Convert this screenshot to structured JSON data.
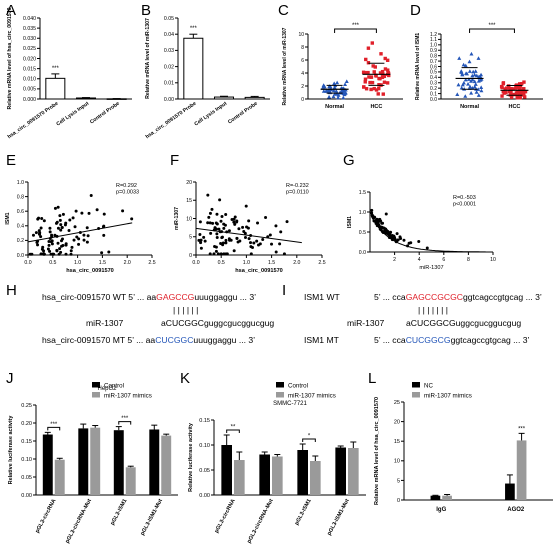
{
  "panel_letters": {
    "A": "A",
    "B": "B",
    "C": "C",
    "D": "D",
    "E": "E",
    "F": "F",
    "G": "G",
    "H": "H",
    "I": "I",
    "J": "J",
    "K": "K",
    "L": "L"
  },
  "colors": {
    "black": "#000000",
    "gray": "#9a9a9a",
    "red": "#e0202a",
    "blue": "#2456b8",
    "trend": "#000000"
  },
  "chart_data": [
    {
      "id": "A",
      "type": "bar",
      "ylabel": "Relative mRNA level of hsa_circ_0091570",
      "categories": [
        "hsa_circ_0091570 Probe",
        "Cell Lysis Input",
        "Control Probe"
      ],
      "values": [
        0.0102,
        0.0005,
        0.0001
      ],
      "errors": [
        0.0022,
        0.0002,
        0.0001
      ],
      "ylim": [
        0,
        0.04
      ],
      "yticks": [
        "0.000",
        "0.005",
        "0.010",
        "0.015",
        "0.020",
        "0.025",
        "0.030",
        "0.035",
        "0.040"
      ],
      "significance": "***"
    },
    {
      "id": "B",
      "type": "bar",
      "ylabel": "Relative mRNA level of miR-1307",
      "categories": [
        "hsa_circ_0091570 Probe",
        "Cell Lysis Input",
        "Control Probe"
      ],
      "values": [
        0.0375,
        0.0012,
        0.001
      ],
      "errors": [
        0.0025,
        0.0005,
        0.0006
      ],
      "ylim": [
        0,
        0.05
      ],
      "yticks": [
        "0.00",
        "0.01",
        "0.02",
        "0.03",
        "0.04",
        "0.05"
      ],
      "significance": "***"
    },
    {
      "id": "C",
      "type": "scatter",
      "ylabel": "Relative mRNA level of miR-1307",
      "categories": [
        "Normal",
        "HCC"
      ],
      "ylim": [
        0,
        10
      ],
      "yticks": [
        "0",
        "2",
        "4",
        "6",
        "8",
        "10"
      ],
      "group_means": [
        1.5,
        3.8
      ],
      "group_sd": [
        0.6,
        1.7
      ],
      "n_per_group": [
        50,
        50
      ],
      "marker_colors": [
        "#2456b8",
        "#e0202a"
      ],
      "significance": "***"
    },
    {
      "id": "D",
      "type": "scatter",
      "ylabel": "Relative mRNA level of ISM1",
      "categories": [
        "Normal",
        "HCC"
      ],
      "ylim": [
        0,
        1.2
      ],
      "yticks": [
        "0.0",
        "0.1",
        "0.2",
        "0.3",
        "0.4",
        "0.5",
        "0.6",
        "0.7",
        "0.8",
        "0.9",
        "1.0",
        "1.1",
        "1.2"
      ],
      "group_means": [
        0.38,
        0.16
      ],
      "group_sd": [
        0.2,
        0.09
      ],
      "n_per_group": [
        50,
        50
      ],
      "marker_colors": [
        "#2456b8",
        "#e0202a"
      ],
      "significance": "***"
    },
    {
      "id": "E",
      "type": "scatter",
      "xlabel": "hsa_circ_0091570",
      "ylabel": "ISM1",
      "xlim": [
        0,
        2.5
      ],
      "ylim": [
        0,
        1.0
      ],
      "xticks": [
        "0.0",
        "0.5",
        "1.0",
        "1.5",
        "2.0",
        "2.5"
      ],
      "yticks": [
        "0.0",
        "0.2",
        "0.4",
        "0.6",
        "0.8",
        "1.0"
      ],
      "stats": [
        "R=0.292",
        "p=0.0033"
      ],
      "trend": [
        [
          0,
          0.18
        ],
        [
          2.1,
          0.44
        ]
      ]
    },
    {
      "id": "F",
      "type": "scatter",
      "xlabel": "hsa_circ_0091570",
      "ylabel": "miR-1307",
      "xlim": [
        0,
        2.5
      ],
      "ylim": [
        0,
        20
      ],
      "xticks": [
        "0.0",
        "0.5",
        "1.0",
        "1.5",
        "2.0",
        "2.5"
      ],
      "yticks": [
        "0",
        "5",
        "10",
        "15",
        "20"
      ],
      "stats": [
        "R=-0.232",
        "p=0.0110"
      ],
      "trend": [
        [
          0,
          7.3
        ],
        [
          2.1,
          3.4
        ]
      ]
    },
    {
      "id": "G",
      "type": "scatter",
      "xlabel": "miR-1307",
      "ylabel": "ISM1",
      "xlim": [
        0,
        10
      ],
      "ylim": [
        0,
        1.5
      ],
      "xticks": [
        "2",
        "4",
        "6",
        "8",
        "10"
      ],
      "yticks": [
        "0.0",
        "0.5",
        "1.0",
        "1.5"
      ],
      "stats": [
        "R=0.-503",
        "p<0.0001"
      ],
      "trend": "decay"
    },
    {
      "id": "J",
      "type": "bar",
      "title": "HepG2",
      "ylabel": "Relative luciferase activity",
      "categories": [
        "pGL3-circRNA",
        "pGL3-circRNA-Mut",
        "pGL3-ISM1",
        "pGL3-ISM1-Mut"
      ],
      "series": [
        {
          "name": "Control",
          "values": [
            0.168,
            0.185,
            0.18,
            0.182
          ],
          "errors": [
            0.006,
            0.012,
            0.01,
            0.012
          ]
        },
        {
          "name": "miR-1307 mimics",
          "values": [
            0.098,
            0.187,
            0.077,
            0.165
          ],
          "errors": [
            0.004,
            0.006,
            0.003,
            0.004
          ]
        }
      ],
      "ylim": [
        0,
        0.25
      ],
      "yticks": [
        "0.00",
        "0.05",
        "0.10",
        "0.15",
        "0.20",
        "0.25"
      ],
      "significance": [
        "***",
        "",
        "***",
        ""
      ]
    },
    {
      "id": "K",
      "type": "bar",
      "title": "SMMC-7721",
      "ylabel": "Relative luciferase activity",
      "categories": [
        "pGL3-circRNA",
        "pGL3-circRNA-Mut",
        "pGL3-ISM1",
        "pGL3-ISM1-Mut"
      ],
      "series": [
        {
          "name": "Control",
          "values": [
            0.1,
            0.081,
            0.09,
            0.095
          ],
          "errors": [
            0.02,
            0.005,
            0.012,
            0.003
          ]
        },
        {
          "name": "miR-1307 mimics",
          "values": [
            0.07,
            0.077,
            0.068,
            0.094
          ],
          "errors": [
            0.016,
            0.004,
            0.01,
            0.012
          ]
        }
      ],
      "ylim": [
        0,
        0.15
      ],
      "yticks": [
        "0.00",
        "0.05",
        "0.10",
        "0.15"
      ],
      "significance": [
        "**",
        "",
        "*",
        ""
      ]
    },
    {
      "id": "L",
      "type": "bar",
      "ylabel": "Relative mRNA level of hsa_circ_0091570",
      "categories": [
        "IgG",
        "AGO2"
      ],
      "series": [
        {
          "name": "NC",
          "values": [
            1.1,
            4.2
          ],
          "errors": [
            0.1,
            2.2
          ]
        },
        {
          "name": "miR-1307 mimics",
          "values": [
            1.1,
            15.2
          ],
          "errors": [
            0.3,
            1.8
          ]
        }
      ],
      "ylim": [
        0,
        25
      ],
      "yticks": [
        "0",
        "5",
        "10",
        "15",
        "20",
        "25"
      ],
      "significance": [
        "",
        "***"
      ]
    }
  ],
  "sequences": {
    "H": {
      "wt_label": "hsa_circ-0091570 WT 5’ ... aa",
      "wt_seed": "GAGCCG",
      "wt_tail": "uuuggaggu ... 3’",
      "bars": "| | | | | |",
      "mir_label": "miR-1307",
      "mir_seq": "aCUCGGCguggcgucggucgug",
      "mt_label": "hsa_circ-0091570 MT 5’ ... aa",
      "mt_seed": "CUCGGC",
      "mt_tail": "uuuggaggu ... 3’"
    },
    "I": {
      "wt_label": "ISM1 WT",
      "wt_prefix": "5’ ... cca",
      "wt_seed": "GAGCCGCGC",
      "wt_tail": "ggtcagccgtgcag ... 3’",
      "bars": "| | | | | | |",
      "mir_label": "miR-1307",
      "mir_seq": "aCUCGGCGuggcgucggucgug",
      "mt_label": "ISM1 MT",
      "mt_prefix": "5’ ... cca",
      "mt_seed": "CUCGGCG",
      "mt_tail": "ggtcagccgtgcag ... 3’"
    }
  }
}
